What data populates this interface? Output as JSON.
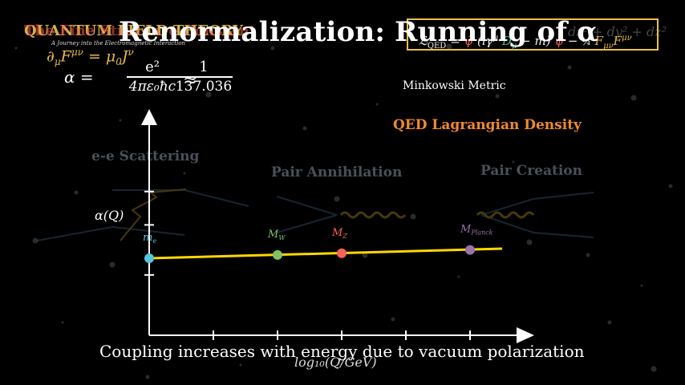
{
  "title": "Renormalization: Running of α",
  "ghost_title": "QUANTUM FIELD THEORY",
  "ghost_title_overlap": "The Fine Structure Constant",
  "ghost_subtitle": "A Journey into the Electromagnetic Interaction",
  "maxwell_equation": "∂μF^μν = μ₀J^ν",
  "alpha_equation": {
    "lhs": "α =",
    "numerator": "e²",
    "denominator": "4πε₀ħc",
    "approx": "≈",
    "value_numerator": "1",
    "value_denominator": "137.036"
  },
  "lagrangian": {
    "equation": "ℒQED = ψ̄ (iγ^μ Dμ − m) ψ − ¼ Fμν F^μν",
    "label": "QED Lagrangian Density",
    "border_color": "#e8c04a"
  },
  "metric": {
    "ghost_text": "dz² + dy² + dz²",
    "label": "Minkowski Metric"
  },
  "processes": [
    "e-e Scattering",
    "Pair Annihilation",
    "Pair Creation"
  ],
  "axes": {
    "y_label": "α(Q)",
    "x_label": "log₁₀(Q/GeV)"
  },
  "mass_scales": [
    {
      "name": "m_e",
      "label": "m",
      "sub": "e",
      "color": "#58c4dd",
      "x": 0,
      "y": 0
    },
    {
      "name": "M_W",
      "label": "M",
      "sub": "W",
      "color": "#83c167",
      "x": 2,
      "y": 0.08
    },
    {
      "name": "M_Z",
      "label": "M",
      "sub": "Z",
      "color": "#fc6255",
      "x": 3,
      "y": 0.12
    },
    {
      "name": "M_Planck",
      "label": "M",
      "sub": "Planck",
      "color": "#9a72ac",
      "x": 5,
      "y": 0.2
    }
  ],
  "curve": {
    "x_start": 0,
    "x_end": 5.5,
    "y_start": 0,
    "y_end": 0.23,
    "color": "#ffd700"
  },
  "caption": "Coupling increases with energy due to vacuum polarization"
}
